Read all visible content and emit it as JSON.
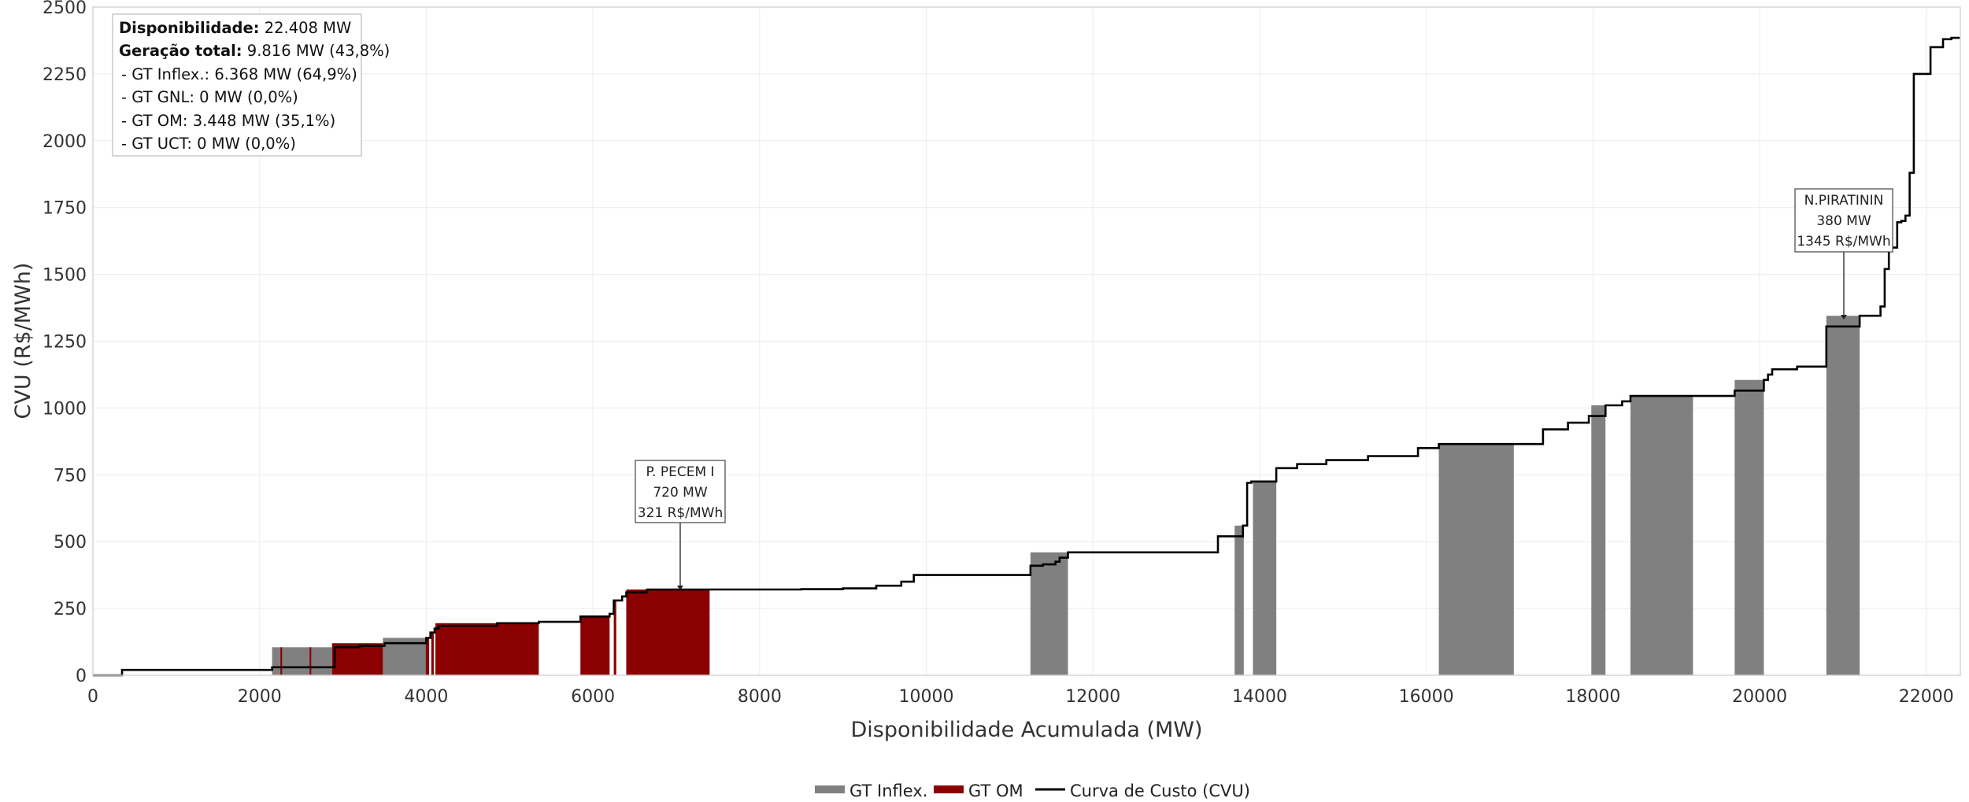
{
  "chart_data": {
    "type": "area",
    "xlabel": "Disponibilidade Acumulada (MW)",
    "ylabel": "CVU (R$/MWh)",
    "xlim": [
      0,
      22408
    ],
    "ylim": [
      0,
      2500
    ],
    "x_ticks": [
      0,
      2000,
      4000,
      6000,
      8000,
      10000,
      12000,
      14000,
      16000,
      18000,
      20000,
      22000
    ],
    "y_ticks": [
      0,
      250,
      500,
      750,
      1000,
      1250,
      1500,
      1750,
      2000,
      2250,
      2500
    ],
    "grid": true,
    "legend_position": "bottom-center",
    "legend": [
      {
        "label": "GT Inflex.",
        "kind": "patch",
        "color": "#808080"
      },
      {
        "label": "GT OM",
        "kind": "patch",
        "color": "#8B0000"
      },
      {
        "label": "Curva de Custo (CVU)",
        "kind": "line",
        "color": "#000000"
      }
    ],
    "info_box": {
      "disp_label": "Disponibilidade:",
      "disp_value": "22.408 MW",
      "gen_label": "Geração total:",
      "gen_value": "9.816 MW (43,8%)",
      "lines": [
        "- GT Inflex.: 6.368 MW (64,9%)",
        "- GT GNL: 0 MW (0,0%)",
        "- GT OM: 3.448 MW (35,1%)",
        "- GT UCT: 0 MW (0,0%)"
      ]
    },
    "annotations": [
      {
        "lines": [
          "P. PECEM I",
          "720 MW",
          "321 R$/MWh"
        ],
        "x": 7040,
        "y": 321
      },
      {
        "lines": [
          "N.PIRATININ",
          "380 MW",
          "1345 R$/MWh"
        ],
        "x": 21000,
        "y": 1345
      }
    ],
    "series": [
      {
        "name": "Curva de Custo (CVU)",
        "type": "step",
        "x": [
          0,
          350,
          1700,
          2150,
          2900,
          3200,
          3500,
          4000,
          4050,
          4100,
          4150,
          4850,
          5350,
          5850,
          6200,
          6250,
          6350,
          6400,
          6650,
          8500,
          9000,
          9400,
          9700,
          9850,
          11250,
          11400,
          11550,
          11600,
          11700,
          13500,
          13800,
          13850,
          13900,
          14200,
          14450,
          14800,
          15300,
          15900,
          16150,
          17050,
          17400,
          17700,
          17950,
          18150,
          18350,
          18450,
          19200,
          19700,
          20050,
          20100,
          20150,
          20450,
          20800,
          21200,
          21450,
          21500,
          21550,
          21650,
          21700,
          21750,
          21800,
          21850,
          22050,
          22200,
          22300,
          22408
        ],
        "y": [
          0,
          20,
          20,
          30,
          105,
          110,
          120,
          140,
          160,
          175,
          185,
          195,
          200,
          220,
          230,
          280,
          295,
          310,
          321,
          322,
          325,
          335,
          350,
          375,
          410,
          415,
          425,
          440,
          460,
          520,
          560,
          720,
          725,
          775,
          790,
          805,
          820,
          850,
          865,
          865,
          920,
          945,
          970,
          1010,
          1025,
          1045,
          1045,
          1065,
          1105,
          1125,
          1145,
          1155,
          1305,
          1345,
          1380,
          1520,
          1600,
          1695,
          1700,
          1720,
          1880,
          2250,
          2350,
          2380,
          2385,
          2385
        ]
      },
      {
        "name": "GT Inflex.",
        "type": "band",
        "segments": [
          {
            "x0": 2150,
            "x1": 2870,
            "y": 105
          },
          {
            "x0": 3480,
            "x1": 4000,
            "y": 140
          },
          {
            "x0": 11250,
            "x1": 11700,
            "y": 460
          },
          {
            "x0": 13700,
            "x1": 13810,
            "y": 560
          },
          {
            "x0": 13920,
            "x1": 14200,
            "y": 725
          },
          {
            "x0": 16150,
            "x1": 17050,
            "y": 865
          },
          {
            "x0": 17980,
            "x1": 18150,
            "y": 1010
          },
          {
            "x0": 18450,
            "x1": 19200,
            "y": 1045
          },
          {
            "x0": 19700,
            "x1": 20050,
            "y": 1105
          },
          {
            "x0": 20800,
            "x1": 21200,
            "y": 1345
          }
        ]
      },
      {
        "name": "GT OM",
        "type": "band",
        "segments": [
          {
            "x0": 2250,
            "x1": 2270,
            "y": 105
          },
          {
            "x0": 2600,
            "x1": 2620,
            "y": 105
          },
          {
            "x0": 2870,
            "x1": 3480,
            "y": 120
          },
          {
            "x0": 3995,
            "x1": 4035,
            "y": 140
          },
          {
            "x0": 4060,
            "x1": 4090,
            "y": 160
          },
          {
            "x0": 4110,
            "x1": 5350,
            "y": 195
          },
          {
            "x0": 5850,
            "x1": 6200,
            "y": 220
          },
          {
            "x0": 6250,
            "x1": 6280,
            "y": 280
          },
          {
            "x0": 6400,
            "x1": 7400,
            "y": 321
          }
        ]
      }
    ]
  }
}
